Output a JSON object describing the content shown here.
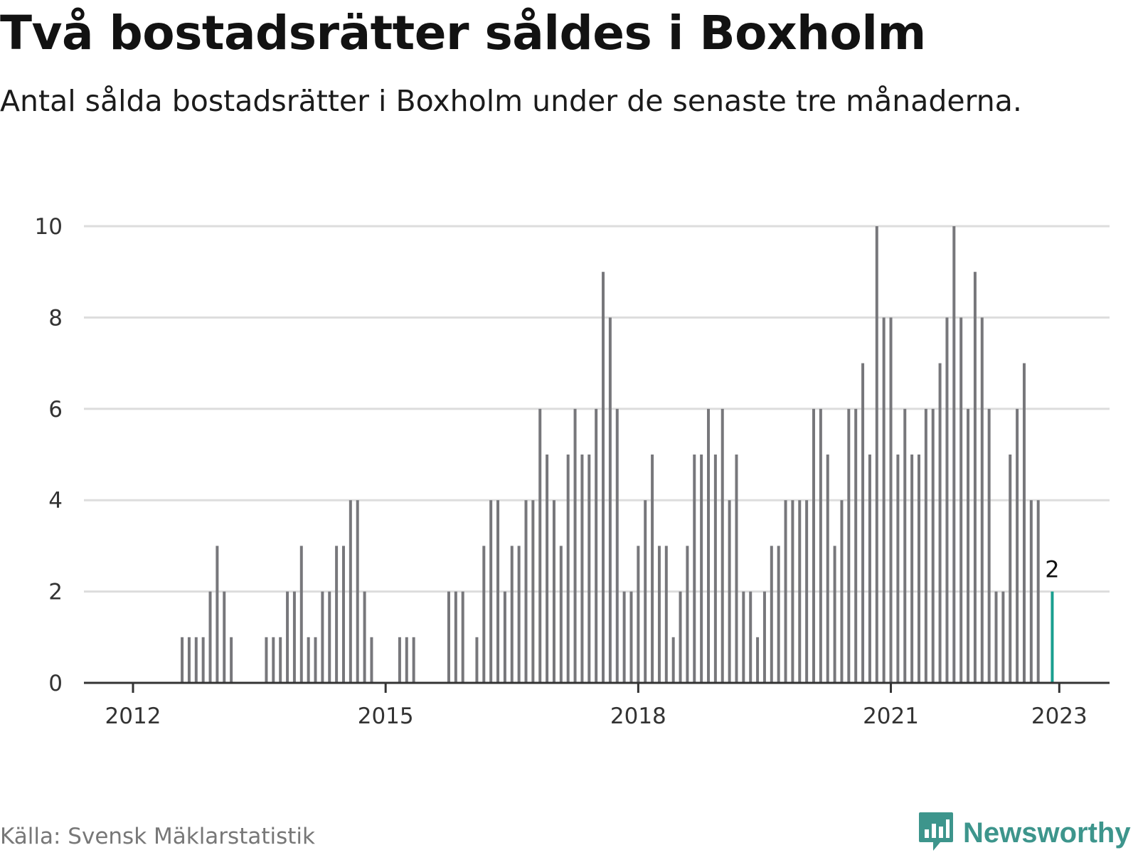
{
  "header": {
    "title": "Två bostadsrätter såldes i Boxholm",
    "subtitle": "Antal sålda bostadsrätter i Boxholm under de senaste tre månaderna."
  },
  "footer": {
    "source": "Källa: Svensk Mäklarstatistik",
    "brand": "Newsworthy",
    "brand_icon": "bar-chart-speech-bubble-icon"
  },
  "colors": {
    "bar": "#77777b",
    "highlight": "#1a9e8f",
    "grid": "#dddddd",
    "axis": "#333333",
    "brand": "#3d958c"
  },
  "chart_data": {
    "type": "bar",
    "title": "Två bostadsrätter såldes i Boxholm",
    "subtitle": "Antal sålda bostadsrätter i Boxholm under de senaste tre månaderna.",
    "xlabel": "",
    "ylabel": "",
    "ylim": [
      0,
      10
    ],
    "yticks": [
      0,
      2,
      4,
      6,
      8,
      10
    ],
    "xticks": [
      {
        "label": "2012",
        "date": "2012-01"
      },
      {
        "label": "2015",
        "date": "2015-01"
      },
      {
        "label": "2018",
        "date": "2018-01"
      },
      {
        "label": "2021",
        "date": "2021-01"
      },
      {
        "label": "2023",
        "date": "2023-01"
      }
    ],
    "grid": true,
    "bars": [
      {
        "date": "2012-08",
        "value": 1
      },
      {
        "date": "2012-09",
        "value": 1
      },
      {
        "date": "2012-10",
        "value": 1
      },
      {
        "date": "2012-11",
        "value": 1
      },
      {
        "date": "2012-12",
        "value": 2
      },
      {
        "date": "2013-01",
        "value": 3
      },
      {
        "date": "2013-02",
        "value": 2
      },
      {
        "date": "2013-03",
        "value": 1
      },
      {
        "date": "2013-08",
        "value": 1
      },
      {
        "date": "2013-09",
        "value": 1
      },
      {
        "date": "2013-10",
        "value": 1
      },
      {
        "date": "2013-11",
        "value": 2
      },
      {
        "date": "2013-12",
        "value": 2
      },
      {
        "date": "2014-01",
        "value": 3
      },
      {
        "date": "2014-02",
        "value": 1
      },
      {
        "date": "2014-03",
        "value": 1
      },
      {
        "date": "2014-04",
        "value": 2
      },
      {
        "date": "2014-05",
        "value": 2
      },
      {
        "date": "2014-06",
        "value": 3
      },
      {
        "date": "2014-07",
        "value": 3
      },
      {
        "date": "2014-08",
        "value": 4
      },
      {
        "date": "2014-09",
        "value": 4
      },
      {
        "date": "2014-10",
        "value": 2
      },
      {
        "date": "2014-11",
        "value": 1
      },
      {
        "date": "2015-03",
        "value": 1
      },
      {
        "date": "2015-04",
        "value": 1
      },
      {
        "date": "2015-05",
        "value": 1
      },
      {
        "date": "2015-10",
        "value": 2
      },
      {
        "date": "2015-11",
        "value": 2
      },
      {
        "date": "2015-12",
        "value": 2
      },
      {
        "date": "2016-02",
        "value": 1
      },
      {
        "date": "2016-03",
        "value": 3
      },
      {
        "date": "2016-04",
        "value": 4
      },
      {
        "date": "2016-05",
        "value": 4
      },
      {
        "date": "2016-06",
        "value": 2
      },
      {
        "date": "2016-07",
        "value": 3
      },
      {
        "date": "2016-08",
        "value": 3
      },
      {
        "date": "2016-09",
        "value": 4
      },
      {
        "date": "2016-10",
        "value": 4
      },
      {
        "date": "2016-11",
        "value": 6
      },
      {
        "date": "2016-12",
        "value": 5
      },
      {
        "date": "2017-01",
        "value": 4
      },
      {
        "date": "2017-02",
        "value": 3
      },
      {
        "date": "2017-03",
        "value": 5
      },
      {
        "date": "2017-04",
        "value": 6
      },
      {
        "date": "2017-05",
        "value": 5
      },
      {
        "date": "2017-06",
        "value": 5
      },
      {
        "date": "2017-07",
        "value": 6
      },
      {
        "date": "2017-08",
        "value": 9
      },
      {
        "date": "2017-09",
        "value": 8
      },
      {
        "date": "2017-10",
        "value": 6
      },
      {
        "date": "2017-11",
        "value": 2
      },
      {
        "date": "2017-12",
        "value": 2
      },
      {
        "date": "2018-01",
        "value": 3
      },
      {
        "date": "2018-02",
        "value": 4
      },
      {
        "date": "2018-03",
        "value": 5
      },
      {
        "date": "2018-04",
        "value": 3
      },
      {
        "date": "2018-05",
        "value": 3
      },
      {
        "date": "2018-06",
        "value": 1
      },
      {
        "date": "2018-07",
        "value": 2
      },
      {
        "date": "2018-08",
        "value": 3
      },
      {
        "date": "2018-09",
        "value": 5
      },
      {
        "date": "2018-10",
        "value": 5
      },
      {
        "date": "2018-11",
        "value": 6
      },
      {
        "date": "2018-12",
        "value": 5
      },
      {
        "date": "2019-01",
        "value": 6
      },
      {
        "date": "2019-02",
        "value": 4
      },
      {
        "date": "2019-03",
        "value": 5
      },
      {
        "date": "2019-04",
        "value": 2
      },
      {
        "date": "2019-05",
        "value": 2
      },
      {
        "date": "2019-06",
        "value": 1
      },
      {
        "date": "2019-07",
        "value": 2
      },
      {
        "date": "2019-08",
        "value": 3
      },
      {
        "date": "2019-09",
        "value": 3
      },
      {
        "date": "2019-10",
        "value": 4
      },
      {
        "date": "2019-11",
        "value": 4
      },
      {
        "date": "2019-12",
        "value": 4
      },
      {
        "date": "2020-01",
        "value": 4
      },
      {
        "date": "2020-02",
        "value": 6
      },
      {
        "date": "2020-03",
        "value": 6
      },
      {
        "date": "2020-04",
        "value": 5
      },
      {
        "date": "2020-05",
        "value": 3
      },
      {
        "date": "2020-06",
        "value": 4
      },
      {
        "date": "2020-07",
        "value": 6
      },
      {
        "date": "2020-08",
        "value": 6
      },
      {
        "date": "2020-09",
        "value": 7
      },
      {
        "date": "2020-10",
        "value": 5
      },
      {
        "date": "2020-11",
        "value": 10
      },
      {
        "date": "2020-12",
        "value": 8
      },
      {
        "date": "2021-01",
        "value": 8
      },
      {
        "date": "2021-02",
        "value": 5
      },
      {
        "date": "2021-03",
        "value": 6
      },
      {
        "date": "2021-04",
        "value": 5
      },
      {
        "date": "2021-05",
        "value": 5
      },
      {
        "date": "2021-06",
        "value": 6
      },
      {
        "date": "2021-07",
        "value": 6
      },
      {
        "date": "2021-08",
        "value": 7
      },
      {
        "date": "2021-09",
        "value": 8
      },
      {
        "date": "2021-10",
        "value": 10
      },
      {
        "date": "2021-11",
        "value": 8
      },
      {
        "date": "2021-12",
        "value": 6
      },
      {
        "date": "2022-01",
        "value": 9
      },
      {
        "date": "2022-02",
        "value": 8
      },
      {
        "date": "2022-03",
        "value": 6
      },
      {
        "date": "2022-04",
        "value": 2
      },
      {
        "date": "2022-05",
        "value": 2
      },
      {
        "date": "2022-06",
        "value": 5
      },
      {
        "date": "2022-07",
        "value": 6
      },
      {
        "date": "2022-08",
        "value": 7
      },
      {
        "date": "2022-09",
        "value": 4
      },
      {
        "date": "2022-10",
        "value": 4
      },
      {
        "date": "2022-12",
        "value": 2,
        "highlight": true,
        "label": "2"
      }
    ]
  }
}
